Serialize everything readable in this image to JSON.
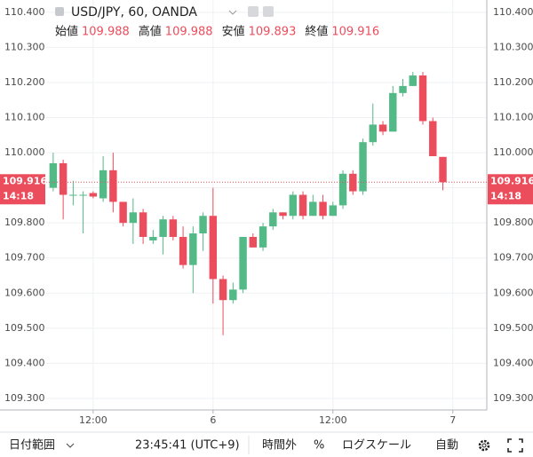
{
  "chart_data": {
    "type": "candlestick",
    "title": "USD/JPY, 60, OANDA",
    "ohlc_legend": [
      {
        "label": "始値",
        "value": 109.988
      },
      {
        "label": "高値",
        "value": 109.988
      },
      {
        "label": "安値",
        "value": 109.893
      },
      {
        "label": "終値",
        "value": 109.916
      }
    ],
    "x": [
      0,
      1,
      2,
      3,
      4,
      5,
      6,
      7,
      8,
      9,
      10,
      11,
      12,
      13,
      14,
      15,
      16,
      17,
      18,
      19,
      20,
      21,
      22,
      23,
      24,
      25,
      26,
      27,
      28,
      29,
      30,
      31,
      32,
      33,
      34,
      35,
      36,
      37,
      38,
      39
    ],
    "open": [
      109.9,
      109.97,
      109.88,
      109.88,
      109.885,
      109.87,
      109.95,
      109.86,
      109.8,
      109.83,
      109.75,
      109.76,
      109.81,
      109.76,
      109.68,
      109.77,
      109.82,
      109.64,
      109.58,
      109.61,
      109.76,
      109.73,
      109.79,
      109.83,
      109.82,
      109.88,
      109.82,
      109.86,
      109.82,
      109.85,
      109.94,
      109.89,
      110.03,
      110.08,
      110.06,
      110.17,
      110.19,
      110.22,
      110.09,
      109.988
    ],
    "high": [
      110.0,
      109.98,
      109.92,
      109.89,
      109.89,
      109.99,
      110.0,
      109.86,
      109.87,
      109.84,
      109.78,
      109.82,
      109.82,
      109.79,
      109.79,
      109.83,
      109.9,
      109.65,
      109.63,
      109.76,
      109.77,
      109.8,
      109.84,
      109.83,
      109.89,
      109.89,
      109.88,
      109.88,
      109.86,
      109.95,
      109.95,
      110.04,
      110.14,
      110.09,
      110.19,
      110.21,
      110.23,
      110.23,
      110.1,
      109.988
    ],
    "low": [
      109.89,
      109.81,
      109.85,
      109.77,
      109.87,
      109.86,
      109.83,
      109.79,
      109.74,
      109.74,
      109.74,
      109.71,
      109.75,
      109.67,
      109.6,
      109.72,
      109.57,
      109.48,
      109.57,
      109.6,
      109.73,
      109.72,
      109.78,
      109.81,
      109.81,
      109.81,
      109.82,
      109.81,
      109.82,
      109.84,
      109.88,
      109.88,
      110.02,
      110.05,
      110.06,
      110.16,
      110.19,
      110.08,
      109.99,
      109.893
    ],
    "close": [
      109.97,
      109.88,
      109.88,
      109.88,
      109.875,
      109.95,
      109.86,
      109.8,
      109.83,
      109.76,
      109.76,
      109.81,
      109.76,
      109.68,
      109.77,
      109.82,
      109.64,
      109.58,
      109.61,
      109.76,
      109.73,
      109.79,
      109.83,
      109.82,
      109.88,
      109.82,
      109.86,
      109.82,
      109.85,
      109.94,
      109.89,
      110.03,
      110.08,
      110.06,
      110.17,
      110.19,
      110.22,
      110.09,
      109.99,
      109.916
    ],
    "up_color": "#53b987",
    "down_color": "#eb4d5c",
    "xlim": [
      -0.7,
      43.4
    ],
    "xticks": [
      {
        "value": 4,
        "label": "12:00"
      },
      {
        "value": 16,
        "label": "6"
      },
      {
        "value": 28,
        "label": "12:00"
      },
      {
        "value": 40,
        "label": "7"
      }
    ],
    "ylim": [
      109.267,
      110.435
    ],
    "yticks": [
      {
        "value": 110.4,
        "label": "110.400"
      },
      {
        "value": 110.3,
        "label": "110.300"
      },
      {
        "value": 110.2,
        "label": "110.200"
      },
      {
        "value": 110.1,
        "label": "110.100"
      },
      {
        "value": 110.0,
        "label": "110.000"
      },
      {
        "value": 109.9,
        "label": "109.900"
      },
      {
        "value": 109.8,
        "label": "109.800"
      },
      {
        "value": 109.7,
        "label": "109.700"
      },
      {
        "value": 109.6,
        "label": "109.600"
      },
      {
        "value": 109.5,
        "label": "109.500"
      },
      {
        "value": 109.4,
        "label": "109.400"
      },
      {
        "value": 109.3,
        "label": "109.300"
      }
    ],
    "grid": true,
    "last_price": 109.916,
    "countdown": "14:18",
    "toolbar": {
      "range": "日付範囲",
      "clock": "23:45:41 (UTC+9)",
      "session": "時間外",
      "percent": "%",
      "log": "ログスケール",
      "auto": "自動"
    }
  }
}
